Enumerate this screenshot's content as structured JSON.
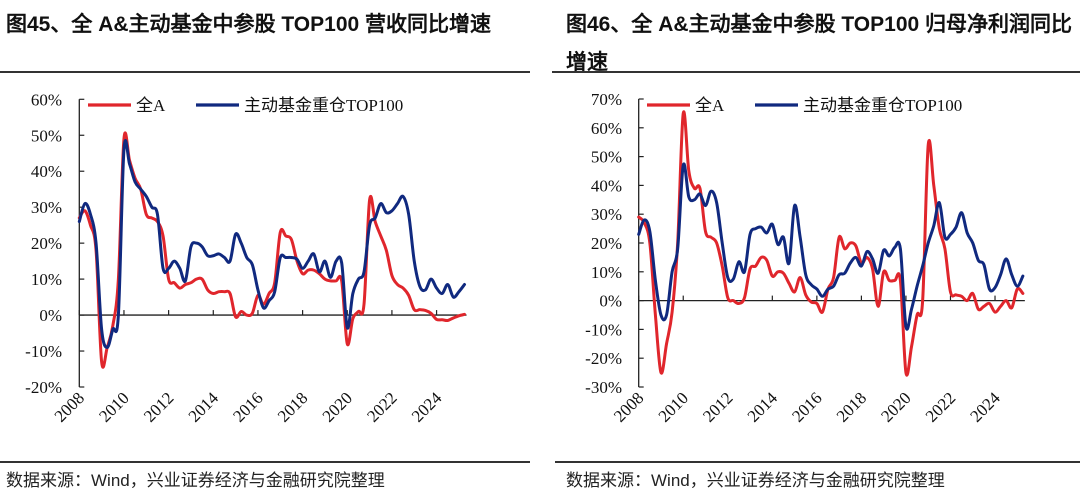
{
  "colors": {
    "all_a": "#e0262c",
    "top100": "#10297f",
    "axis": "#222222"
  },
  "chart_data": [
    {
      "type": "line",
      "title": "图45、全 A&主动基金中参股 TOP100 营收同比增速",
      "source": "数据来源：Wind，兴业证券经济与金融研究院整理",
      "ylim": [
        -20,
        60
      ],
      "yticks": [
        "60%",
        "50%",
        "40%",
        "30%",
        "20%",
        "10%",
        "0%",
        "-10%",
        "-20%"
      ],
      "ytick_values": [
        60,
        50,
        40,
        30,
        20,
        10,
        0,
        -10,
        -20
      ],
      "xticks": [
        "2008",
        "2010",
        "2012",
        "2014",
        "2016",
        "2018",
        "2020",
        "2022",
        "2024"
      ],
      "legend_placement": "top",
      "grid": false,
      "x_start": 2008,
      "x_step": 0.25,
      "series": [
        {
          "name": "全A",
          "color": "#e0262c",
          "values": [
            27,
            29,
            25,
            18,
            -13,
            -9,
            -3,
            10,
            49,
            43,
            38,
            35,
            28,
            27,
            26,
            22,
            10,
            9,
            7.5,
            8.5,
            9,
            10,
            10,
            7,
            6,
            6.5,
            6.5,
            6,
            -0.5,
            1,
            0,
            0.5,
            5.5,
            3,
            6,
            9,
            23,
            22,
            21,
            15,
            11.5,
            12.5,
            12.5,
            11.5,
            10,
            9.5,
            9.5,
            9.5,
            -8,
            -1,
            1,
            3,
            32,
            26,
            22,
            18,
            11,
            8.5,
            7.5,
            5.5,
            1.5,
            1.5,
            1.3,
            0.5,
            -1.2,
            -1.3,
            -1.5,
            -0.8,
            -0.2,
            0.2
          ]
        },
        {
          "name": "主动基金重仓TOP100",
          "color": "#10297f",
          "values": [
            26,
            31,
            28,
            20,
            -4,
            -9,
            -4,
            0,
            46,
            42,
            37,
            35,
            33,
            30,
            28,
            13,
            13,
            15,
            13,
            9.5,
            19,
            20,
            19,
            16.5,
            16.5,
            17,
            16,
            15,
            22.5,
            20,
            16,
            14,
            7,
            2,
            4,
            6.5,
            16,
            16,
            16,
            15.5,
            13,
            15,
            17,
            12,
            15,
            10.5,
            15,
            14.5,
            -3.5,
            6,
            10,
            12,
            25,
            27,
            31,
            28.5,
            29,
            31,
            33,
            28,
            15,
            8,
            7,
            10,
            7.5,
            6,
            8.5,
            5,
            6.5,
            8.5
          ]
        }
      ]
    },
    {
      "type": "line",
      "title": "图46、全 A&主动基金中参股 TOP100 归母净利润同比增速",
      "source": "数据来源：Wind，兴业证券经济与金融研究院整理",
      "ylim": [
        -30,
        70
      ],
      "yticks": [
        "70%",
        "60%",
        "50%",
        "40%",
        "30%",
        "20%",
        "10%",
        "0%",
        "-10%",
        "-20%",
        "-30%"
      ],
      "ytick_values": [
        70,
        60,
        50,
        40,
        30,
        20,
        10,
        0,
        -10,
        -20,
        -30
      ],
      "xticks": [
        "2008",
        "2010",
        "2012",
        "2014",
        "2016",
        "2018",
        "2020",
        "2022",
        "2024"
      ],
      "legend_placement": "top",
      "grid": false,
      "x_start": 2008,
      "x_step": 0.25,
      "series": [
        {
          "name": "全A",
          "color": "#e0262c",
          "values": [
            29,
            27,
            20,
            -5,
            -25,
            -15,
            -4,
            20,
            65,
            45,
            39,
            39,
            24,
            22,
            20,
            12,
            1,
            0,
            -1,
            1,
            11,
            12,
            15,
            14,
            8.5,
            10,
            9.5,
            6,
            3,
            8,
            2,
            -0.5,
            -1,
            -4,
            4,
            8,
            22,
            18,
            20,
            19,
            13,
            15,
            11,
            -2,
            10,
            7,
            7,
            7,
            -25,
            -16,
            -5,
            0,
            54,
            40,
            25,
            18,
            3,
            2,
            1.5,
            0,
            2.5,
            -3,
            -2,
            -1,
            -4,
            -2,
            0,
            -2.5,
            4,
            2.5
          ]
        },
        {
          "name": "主动基金重仓TOP100",
          "color": "#10297f",
          "values": [
            23,
            28,
            24,
            7,
            -5,
            -5,
            10,
            18,
            47,
            36,
            35,
            37,
            33,
            38,
            34,
            20,
            8,
            7.5,
            13.5,
            10,
            23,
            25,
            25.5,
            23.5,
            26.5,
            19.5,
            22,
            13,
            33,
            22,
            9,
            5.5,
            4,
            1.5,
            4,
            5,
            9,
            9.5,
            13,
            15,
            12,
            17,
            14.5,
            9.5,
            17.5,
            15.5,
            18.5,
            18,
            -9,
            -3,
            5,
            12,
            20,
            26,
            34,
            22,
            23,
            25.5,
            30.5,
            23.5,
            20,
            14,
            12.5,
            4,
            4.5,
            9,
            14.5,
            9,
            5,
            8.5
          ]
        }
      ]
    }
  ]
}
